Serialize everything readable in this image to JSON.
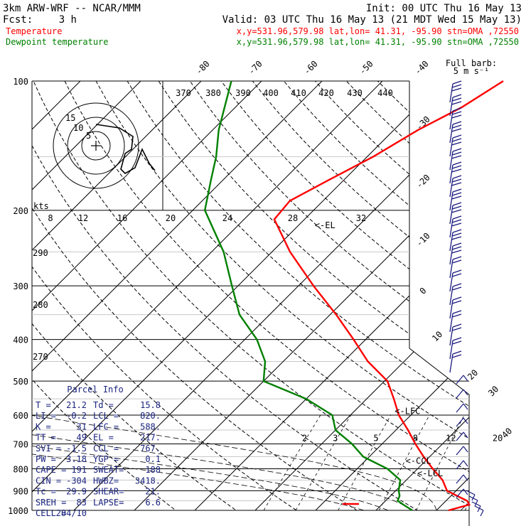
{
  "header": {
    "model": "3km ARW-WRF -- NCAR/MMM",
    "init": "Init: 00 UTC Thu 16 May 13",
    "fcst_label": "Fcst:",
    "fcst_value": "3 h",
    "valid": "Valid: 03 UTC Thu 16 May 13 (21 MDT Wed 15 May 13)",
    "temp_label": "Temperature",
    "temp_info": "x,y=531.96,579.98   lat,lon= 41.31, -95.90  stn=OMA ,72550",
    "dew_label": "Dewpoint temperature",
    "dew_info": "x,y=531.96,579.98   lat,lon= 41.31, -95.90  stn=OMA ,72550",
    "barb_title_1": "Full barb:",
    "barb_title_2": "5 m s⁻¹",
    "kts_label": "kts"
  },
  "colors": {
    "temperature": "#ff0000",
    "dewpoint": "#008000",
    "barbs": "#1a1a80",
    "text": "#000000",
    "parcel_text": "#1a237e"
  },
  "chart_data": {
    "type": "line",
    "title": "",
    "xlabel": "",
    "ylabel": "",
    "pressure_levels": [
      "100",
      "200",
      "300",
      "400",
      "500",
      "600",
      "700",
      "800",
      "900",
      "1000"
    ],
    "skewed_temp_labels": [
      "-80",
      "-70",
      "-60",
      "-50",
      "-40",
      "-30",
      "-20",
      "-10",
      "0",
      "10",
      "20",
      "30",
      "40"
    ],
    "theta_labels": [
      "370",
      "380",
      "390",
      "400",
      "410",
      "420",
      "430",
      "440"
    ],
    "theta_side_labels": [
      "290",
      "280",
      "270"
    ],
    "hodograph_scale_labels": [
      "8",
      "12",
      "16",
      "20",
      "24",
      "28",
      "32"
    ],
    "hodograph_ring_labels": [
      "15",
      "10",
      "5"
    ],
    "mixing_ratio_labels": [
      "2",
      "3",
      "5",
      "8",
      "12",
      "20"
    ],
    "annotations": {
      "el": "<-EL",
      "lfc": "<-LFC",
      "ccl": "<-CCL",
      "lcl": "<-LCL"
    },
    "series": [
      {
        "name": "Temperature",
        "points": [
          [
            1000,
            22.0
          ],
          [
            970,
            24.5
          ],
          [
            950,
            23.5
          ],
          [
            930,
            21.5
          ],
          [
            900,
            18.5
          ],
          [
            850,
            16.0
          ],
          [
            800,
            12.5
          ],
          [
            750,
            9.0
          ],
          [
            700,
            5.5
          ],
          [
            650,
            2.0
          ],
          [
            600,
            -2.0
          ],
          [
            550,
            -5.5
          ],
          [
            500,
            -9.5
          ],
          [
            450,
            -16.0
          ],
          [
            400,
            -22.0
          ],
          [
            350,
            -29.0
          ],
          [
            300,
            -37.5
          ],
          [
            250,
            -47.0
          ],
          [
            210,
            -55.0
          ],
          [
            190,
            -55.5
          ],
          [
            170,
            -52.5
          ],
          [
            150,
            -49.0
          ],
          [
            130,
            -46.0
          ],
          [
            115,
            -42.5
          ],
          [
            100,
            -40.0
          ]
        ]
      },
      {
        "name": "Dewpoint temperature",
        "points": [
          [
            1000,
            16.0
          ],
          [
            975,
            14.0
          ],
          [
            950,
            12.0
          ],
          [
            925,
            11.5
          ],
          [
            900,
            10.5
          ],
          [
            850,
            9.0
          ],
          [
            800,
            5.0
          ],
          [
            750,
            -1.0
          ],
          [
            700,
            -5.0
          ],
          [
            650,
            -10.0
          ],
          [
            600,
            -13.0
          ],
          [
            550,
            -20.0
          ],
          [
            500,
            -30.0
          ],
          [
            450,
            -33.0
          ],
          [
            400,
            -38.0
          ],
          [
            350,
            -45.0
          ],
          [
            300,
            -51.0
          ],
          [
            250,
            -58.0
          ],
          [
            200,
            -68.0
          ],
          [
            170,
            -72.0
          ],
          [
            150,
            -75.0
          ],
          [
            130,
            -79.0
          ],
          [
            100,
            -85.0
          ]
        ]
      }
    ],
    "hodograph": [
      [
        0,
        0
      ],
      [
        12,
        -13
      ],
      [
        -5,
        -13
      ],
      [
        -7,
        -4
      ],
      [
        -15,
        2
      ],
      [
        -10,
        5
      ],
      [
        -2,
        6
      ],
      [
        3,
        10
      ]
    ]
  },
  "parcel": {
    "title": "Parcel Info",
    "rows": [
      [
        "T  =",
        "21.2",
        "Td =",
        "15.8"
      ],
      [
        "LI =",
        "-0.2",
        "LCL =",
        "820."
      ],
      [
        "K  =",
        "31",
        "LFC =",
        "588."
      ],
      [
        "TT =",
        "49",
        "EL  =",
        "217."
      ],
      [
        "SVI =",
        "-1.5",
        "CCL =",
        "767."
      ],
      [
        "PW =",
        "3.18",
        "YGP =",
        "0.1"
      ],
      [
        "CAPE =",
        "191",
        "SWEAT=",
        "188"
      ],
      [
        "CIN =",
        "-304",
        "HWBZ=",
        "3418."
      ],
      [
        "Tc =",
        "29.9",
        "SHEAR=",
        "21."
      ],
      [
        "SREH =",
        "83",
        "LAPSE=",
        "6.6"
      ],
      [
        "CELL =",
        "284/10",
        "",
        ""
      ]
    ]
  }
}
